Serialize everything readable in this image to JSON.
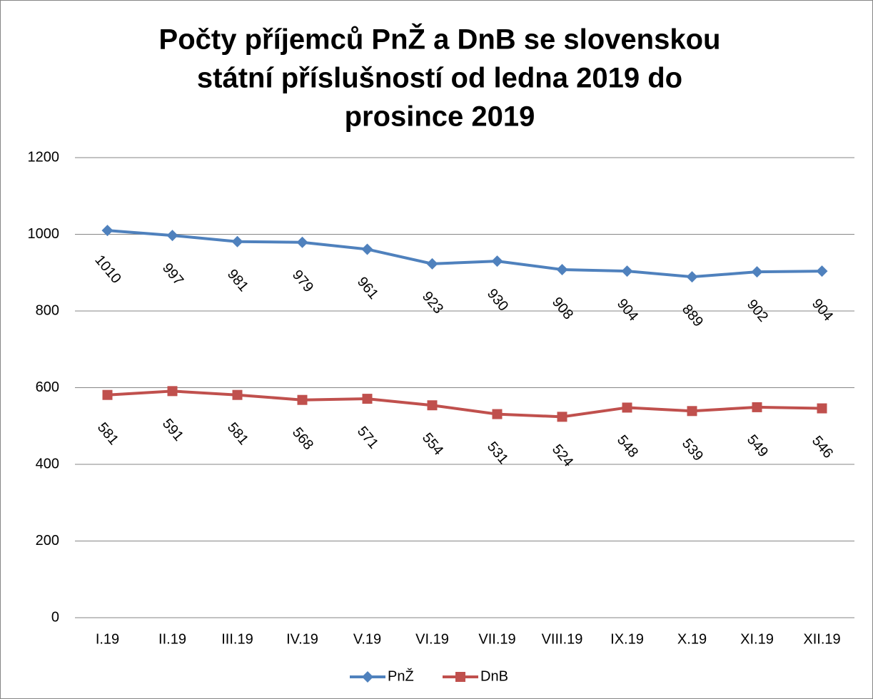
{
  "chart_data": {
    "type": "line",
    "title": "Počty příjemců PnŽ a DnB se slovenskou státní příslušností od ledna 2019 do prosince 2019",
    "title_lines": [
      "Počty příjemců PnŽ a DnB se slovenskou",
      "státní příslušností od ledna 2019 do",
      "prosince 2019"
    ],
    "categories": [
      "I.19",
      "II.19",
      "III.19",
      "IV.19",
      "V.19",
      "VI.19",
      "VII.19",
      "VIII.19",
      "IX.19",
      "X.19",
      "XI.19",
      "XII.19"
    ],
    "series": [
      {
        "name": "PnŽ",
        "color": "#4f81bd",
        "marker": "diamond",
        "values": [
          1010,
          997,
          981,
          979,
          961,
          923,
          930,
          908,
          904,
          889,
          902,
          904
        ]
      },
      {
        "name": "DnB",
        "color": "#c0504d",
        "marker": "square",
        "values": [
          581,
          591,
          581,
          568,
          571,
          554,
          531,
          524,
          548,
          539,
          549,
          546
        ]
      }
    ],
    "ylim": [
      0,
      1200
    ],
    "yticks": [
      0,
      200,
      400,
      600,
      800,
      1000,
      1200
    ],
    "grid": true,
    "legend": "bottom"
  }
}
